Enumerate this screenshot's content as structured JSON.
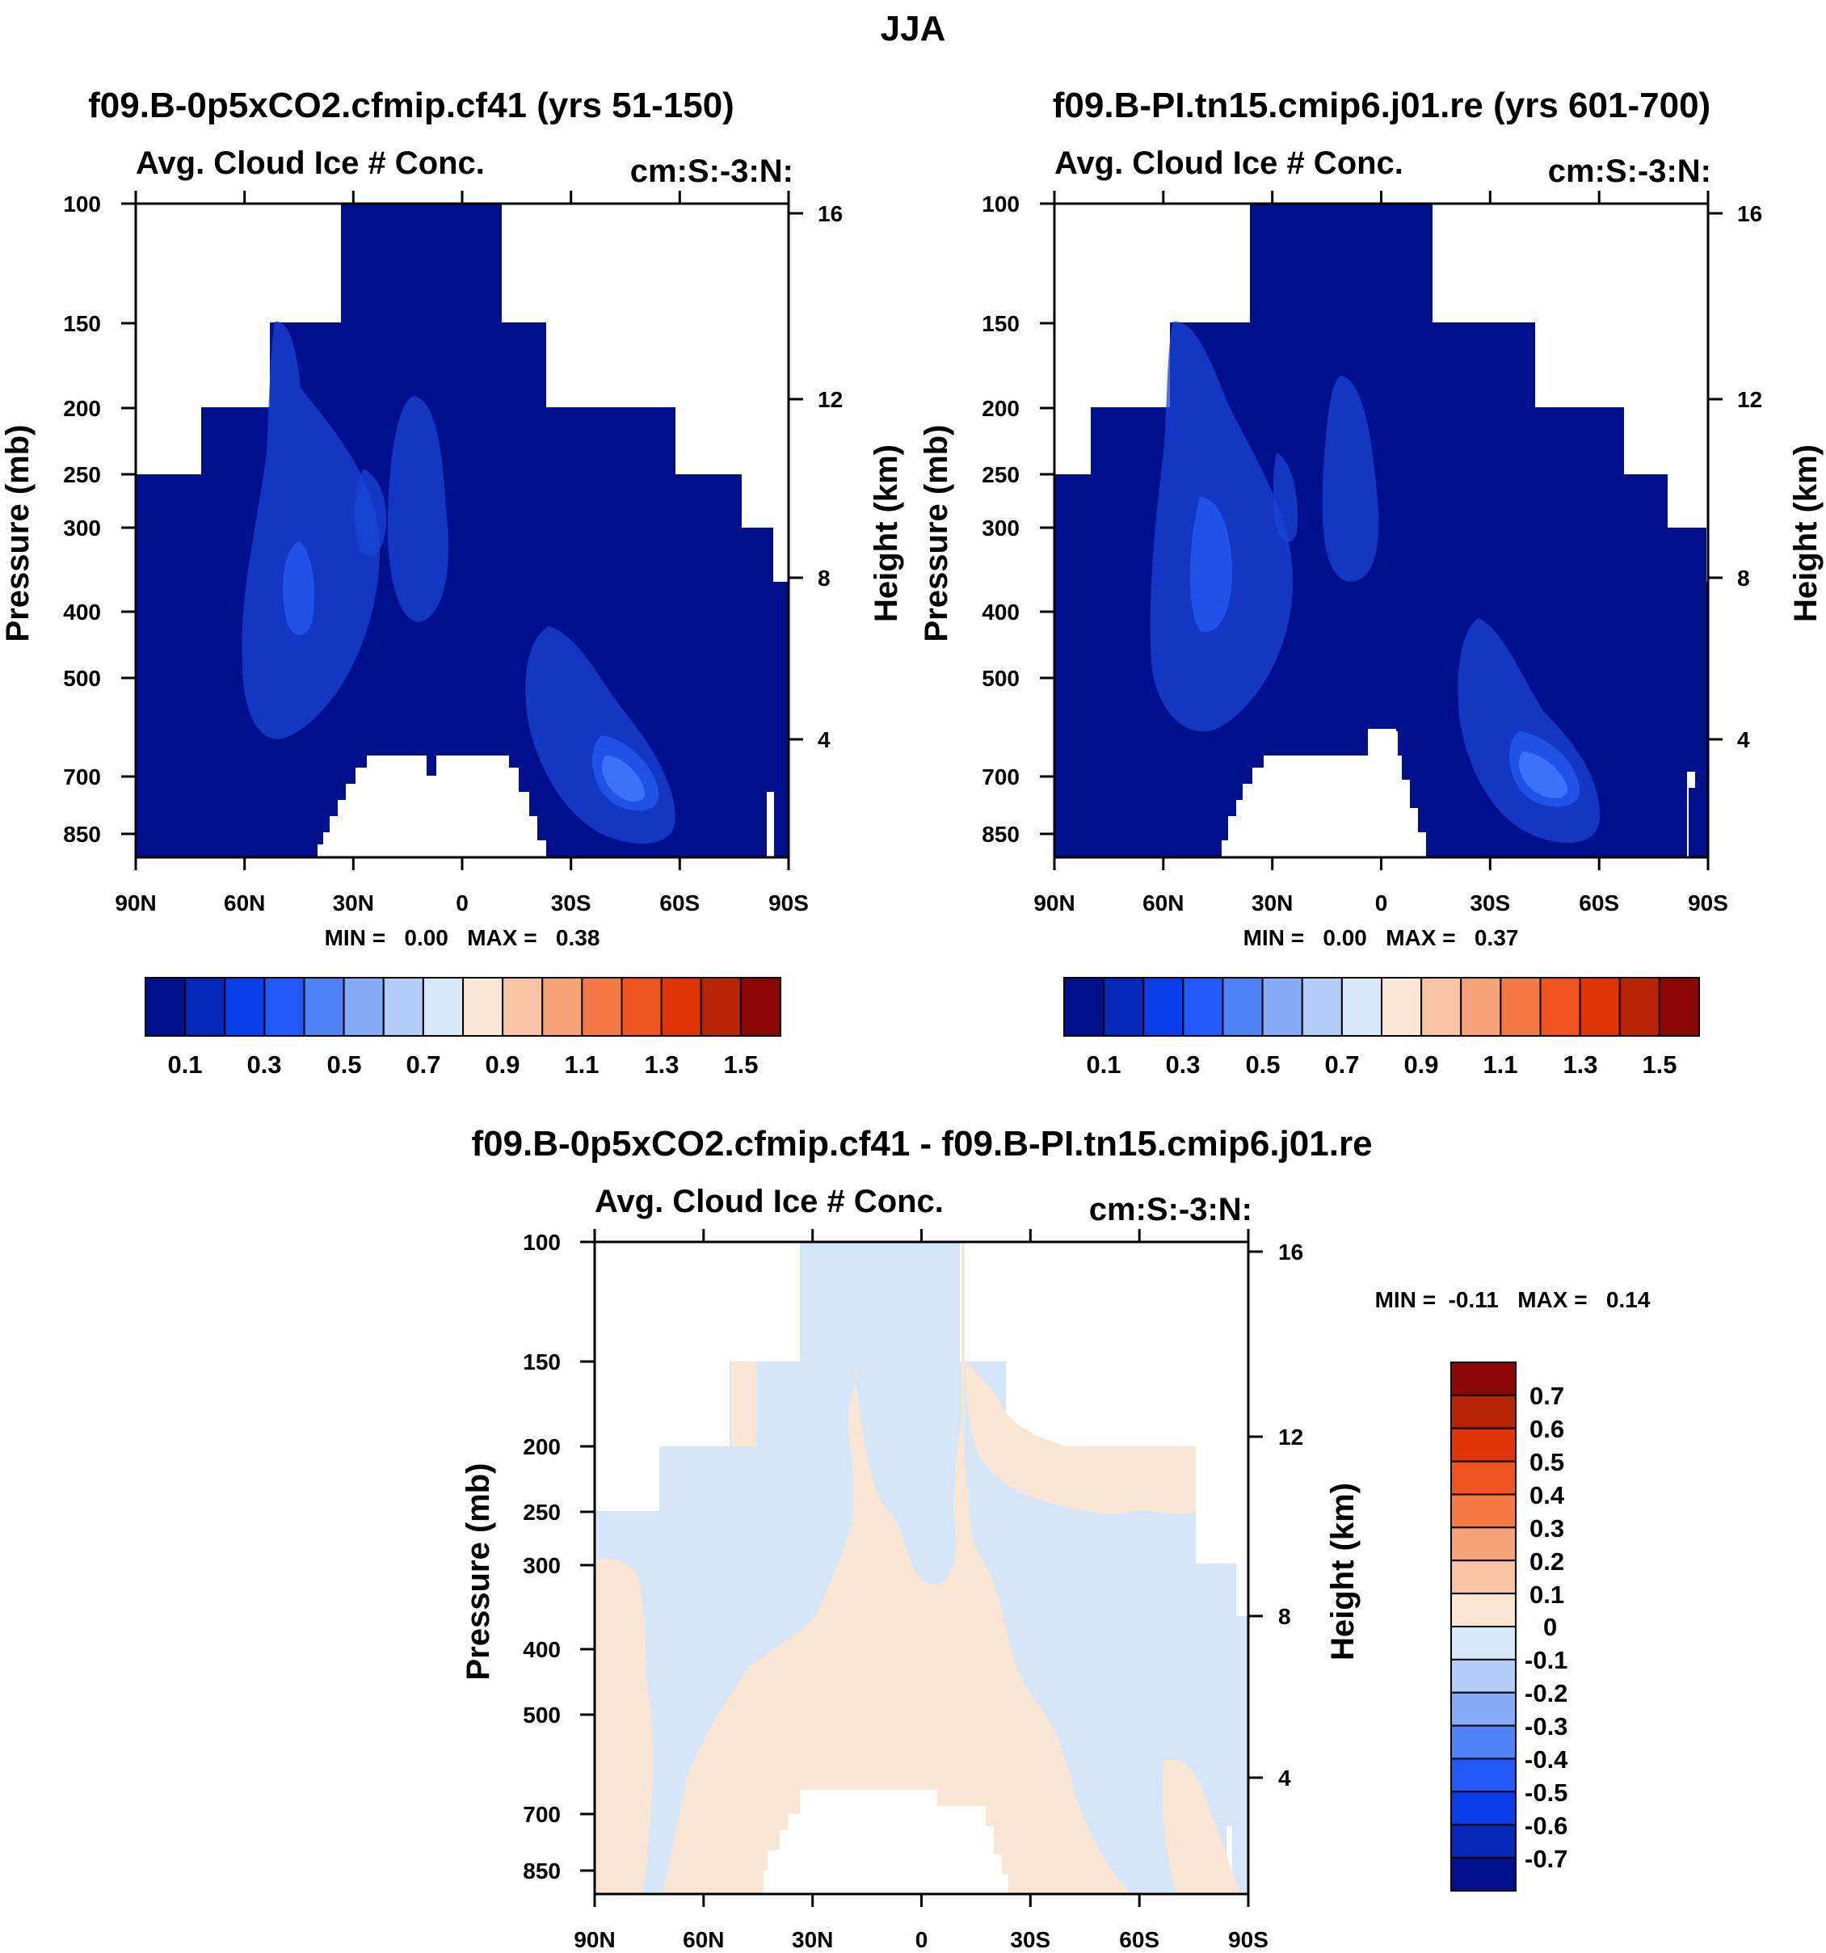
{
  "main_title": "JJA",
  "panels": [
    {
      "title": "f09.B-0p5xCO2.cfmip.cf41 (yrs 51-150)",
      "left_label": "Avg. Cloud Ice # Conc.",
      "right_label": "cm:S:-3:N:",
      "ylabel": "Pressure (mb)",
      "ylabel_right": "Height (km)",
      "minmax": "MIN =   0.00   MAX =   0.38"
    },
    {
      "title": "f09.B-PI.tn15.cmip6.j01.re (yrs 601-700)",
      "left_label": "Avg. Cloud Ice # Conc.",
      "right_label": "cm:S:-3:N:",
      "ylabel": "Pressure (mb)",
      "ylabel_right": "Height (km)",
      "minmax": "MIN =   0.00   MAX =   0.37"
    },
    {
      "title": "f09.B-0p5xCO2.cfmip.cf41 - f09.B-PI.tn15.cmip6.j01.re",
      "left_label": "Avg. Cloud Ice # Conc.",
      "right_label": "cm:S:-3:N:",
      "ylabel": "Pressure (mb)",
      "ylabel_right": "Height (km)",
      "minmax": "MIN =  -0.11   MAX =   0.14"
    }
  ],
  "chart_data": [
    {
      "type": "heatmap",
      "x": [
        "90N",
        "60N",
        "30N",
        "0",
        "30S",
        "60S",
        "90S"
      ],
      "y_pressure_mb": [
        "100",
        "150",
        "200",
        "250",
        "300",
        "400",
        "500",
        "700",
        "850"
      ],
      "y_height_km": [
        "16",
        "12",
        "8",
        "4"
      ],
      "colorbar_labels": [
        "0.1",
        "0.3",
        "0.5",
        "0.7",
        "0.9",
        "1.1",
        "1.3",
        "1.5"
      ],
      "min": 0.0,
      "max": 0.38
    },
    {
      "type": "heatmap",
      "x": [
        "90N",
        "60N",
        "30N",
        "0",
        "30S",
        "60S",
        "90S"
      ],
      "y_pressure_mb": [
        "100",
        "150",
        "200",
        "250",
        "300",
        "400",
        "500",
        "700",
        "850"
      ],
      "y_height_km": [
        "16",
        "12",
        "8",
        "4"
      ],
      "colorbar_labels": [
        "0.1",
        "0.3",
        "0.5",
        "0.7",
        "0.9",
        "1.1",
        "1.3",
        "1.5"
      ],
      "min": 0.0,
      "max": 0.37
    },
    {
      "type": "heatmap",
      "x": [
        "90N",
        "60N",
        "30N",
        "0",
        "30S",
        "60S",
        "90S"
      ],
      "y_pressure_mb": [
        "100",
        "150",
        "200",
        "250",
        "300",
        "400",
        "500",
        "700",
        "850"
      ],
      "y_height_km": [
        "16",
        "12",
        "8",
        "4"
      ],
      "colorbar_labels": [
        "0.7",
        "0.6",
        "0.5",
        "0.4",
        "0.3",
        "0.2",
        "0.1",
        "0",
        "-0.1",
        "-0.2",
        "-0.3",
        "-0.4",
        "-0.5",
        "-0.6",
        "-0.7"
      ],
      "min": -0.11,
      "max": 0.14
    }
  ],
  "colors": {
    "palette": [
      "#000f8c",
      "#0628b8",
      "#0a3ee8",
      "#2258f8",
      "#4e82f6",
      "#86acf6",
      "#b4ccf8",
      "#d8e8fa",
      "#fbe6d4",
      "#f9c4a6",
      "#f8a27a",
      "#f57a46",
      "#f0541e",
      "#e03508",
      "#b82305",
      "#8c0606"
    ],
    "diff_neg": "#d5e5fa",
    "diff_pos": "#fbe5d3"
  }
}
